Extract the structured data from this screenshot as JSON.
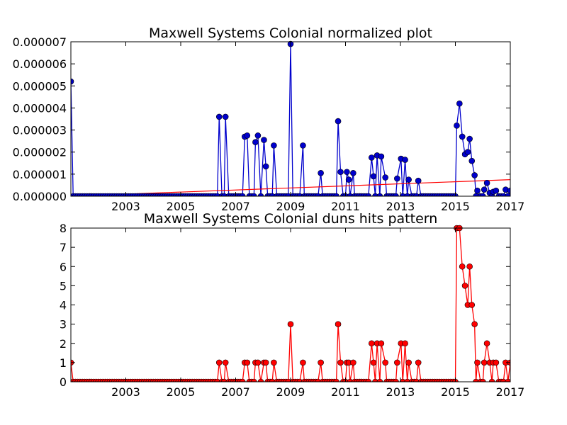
{
  "chart_data": [
    {
      "type": "line",
      "title": "Maxwell Systems Colonial normalized plot",
      "xlabel": "",
      "ylabel": "",
      "xlim": [
        2001.0,
        2017.0
      ],
      "ylim": [
        0,
        7e-06
      ],
      "x_ticks": [
        2003,
        2005,
        2007,
        2009,
        2011,
        2013,
        2015,
        2017
      ],
      "y_ticks": [
        "0.000000",
        "0.000001",
        "0.000002",
        "0.000003",
        "0.000004",
        "0.000005",
        "0.000006",
        "0.000007"
      ],
      "grid": false,
      "colors": {
        "series": "#0000cc",
        "trend": "#ff0000"
      },
      "series": [
        {
          "x": [
            2001.0,
            2006.4,
            2006.63,
            2007.33,
            2007.42,
            2007.72,
            2007.81,
            2008.03,
            2008.1,
            2008.39,
            2009.0,
            2009.45,
            2010.1,
            2010.73,
            2010.82,
            2011.05,
            2011.12,
            2011.28,
            2011.95,
            2012.02,
            2012.15,
            2012.3,
            2012.45,
            2012.88,
            2013.02,
            2013.17,
            2013.3,
            2013.65,
            2015.05,
            2015.15,
            2015.25,
            2015.35,
            2015.45,
            2015.52,
            2015.6,
            2015.7,
            2015.8,
            2016.05,
            2016.15,
            2016.25,
            2016.38,
            2016.48,
            2016.83,
            2017.0
          ],
          "values": [
            5.2e-06,
            3.6e-06,
            3.6e-06,
            2.7e-06,
            2.75e-06,
            2.45e-06,
            2.75e-06,
            2.55e-06,
            1.35e-06,
            2.3e-06,
            6.9e-06,
            2.3e-06,
            1.05e-06,
            3.4e-06,
            1.1e-06,
            1.1e-06,
            7.5e-07,
            1.05e-06,
            1.75e-06,
            9e-07,
            1.85e-06,
            1.8e-06,
            8.5e-07,
            8e-07,
            1.7e-06,
            1.65e-06,
            7.5e-07,
            7e-07,
            3.2e-06,
            4.2e-06,
            2.7e-06,
            1.9e-06,
            2e-06,
            2.6e-06,
            1.6e-06,
            9.5e-07,
            2.5e-07,
            3e-07,
            6e-07,
            1.5e-07,
            2e-07,
            2.5e-07,
            3e-07,
            2.5e-07
          ]
        }
      ],
      "trend_line": {
        "x": [
          2001.0,
          2017.0
        ],
        "values": [
          0.0,
          7.5e-07
        ]
      }
    },
    {
      "type": "line",
      "title": "Maxwell Systems Colonial duns hits pattern",
      "xlabel": "",
      "ylabel": "",
      "xlim": [
        2001.0,
        2017.0
      ],
      "ylim": [
        0,
        8
      ],
      "x_ticks": [
        2003,
        2005,
        2007,
        2009,
        2011,
        2013,
        2015,
        2017
      ],
      "y_ticks": [
        "0",
        "1",
        "2",
        "3",
        "4",
        "5",
        "6",
        "7",
        "8"
      ],
      "grid": false,
      "colors": {
        "series": "#ff0000"
      },
      "series": [
        {
          "x": [
            2001.0,
            2006.4,
            2006.63,
            2007.33,
            2007.42,
            2007.72,
            2007.81,
            2008.03,
            2008.1,
            2008.39,
            2009.0,
            2009.45,
            2010.1,
            2010.73,
            2010.82,
            2011.05,
            2011.12,
            2011.28,
            2011.95,
            2012.02,
            2012.15,
            2012.3,
            2012.45,
            2012.88,
            2013.02,
            2013.17,
            2013.3,
            2013.65,
            2015.05,
            2015.15,
            2015.25,
            2015.35,
            2015.45,
            2015.52,
            2015.6,
            2015.7,
            2015.8,
            2016.05,
            2016.15,
            2016.25,
            2016.38,
            2016.48,
            2016.83,
            2017.0
          ],
          "values": [
            1,
            1,
            1,
            1,
            1,
            1,
            1,
            1,
            1,
            1,
            3,
            1,
            1,
            3,
            1,
            1,
            1,
            1,
            2,
            1,
            2,
            2,
            1,
            1,
            2,
            2,
            1,
            1,
            8,
            8,
            6,
            5,
            4,
            6,
            4,
            3,
            1,
            1,
            2,
            1,
            1,
            1,
            1,
            1
          ]
        }
      ]
    }
  ]
}
